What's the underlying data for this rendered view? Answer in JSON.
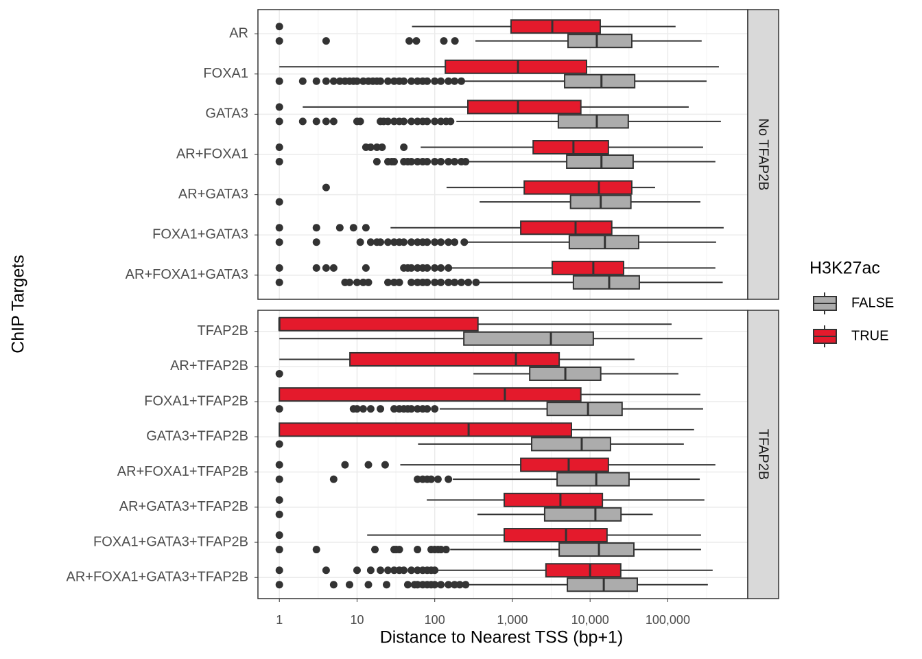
{
  "chart_data": {
    "type": "boxplot",
    "x_label": "Distance to Nearest TSS (bp+1)",
    "y_label": "ChIP Targets",
    "legend_title": "H3K27ac",
    "log_x": true,
    "grid": true,
    "xlim": [
      0.53,
      1070000
    ],
    "xticks": [
      1,
      10,
      100,
      {
        "value": 1000,
        "label": "1,000"
      },
      {
        "value": 10000,
        "label": "10,000"
      },
      {
        "value": 100000,
        "label": "100,000"
      }
    ],
    "facets": [
      {
        "strip": "No TFAP2B",
        "categories": [
          "AR",
          "FOXA1",
          "GATA3",
          "AR+FOXA1",
          "AR+GATA3",
          "FOXA1+GATA3",
          "AR+FOXA1+GATA3"
        ],
        "series": [
          {
            "name": "FALSE",
            "color": "#acacac",
            "boxes": [
              {
                "whislo": 334,
                "q1": 5200,
                "med": 12200,
                "q3": 34400,
                "whishi": 273000,
                "outliers": [
                  1,
                  4,
                  47,
                  58,
                  131,
                  182
                ]
              },
              {
                "whislo": 237,
                "q1": 4700,
                "med": 14000,
                "q3": 37500,
                "whishi": 316000,
                "outliers": [
                  1,
                  2,
                  3,
                  4,
                  5,
                  6,
                  7,
                  8,
                  9,
                  10,
                  12,
                  14,
                  16,
                  18,
                  20,
                  25,
                  30,
                  35,
                  40,
                  50,
                  60,
                  70,
                  80,
                  100,
                  120,
                  150,
                  180,
                  220
                ]
              },
              {
                "whislo": 190,
                "q1": 3900,
                "med": 12200,
                "q3": 31000,
                "whishi": 483000,
                "outliers": [
                  1,
                  2,
                  3,
                  4,
                  5,
                  10,
                  11,
                  20,
                  22,
                  25,
                  30,
                  35,
                  40,
                  50,
                  60,
                  70,
                  80,
                  100,
                  120,
                  140,
                  160
                ]
              },
              {
                "whislo": 257,
                "q1": 5000,
                "med": 14000,
                "q3": 35800,
                "whishi": 410000,
                "outliers": [
                  1,
                  18,
                  25,
                  28,
                  30,
                  40,
                  45,
                  50,
                  60,
                  70,
                  80,
                  100,
                  120,
                  150,
                  180,
                  220,
                  250
                ]
              },
              {
                "whislo": 378,
                "q1": 5600,
                "med": 13700,
                "q3": 33500,
                "whishi": 263000,
                "outliers": [
                  1
                ]
              },
              {
                "whislo": 257,
                "q1": 5400,
                "med": 15500,
                "q3": 42200,
                "whishi": 419000,
                "outliers": [
                  1,
                  3,
                  11,
                  15,
                  18,
                  20,
                  25,
                  30,
                  35,
                  40,
                  50,
                  60,
                  70,
                  80,
                  100,
                  120,
                  150,
                  180,
                  240
                ]
              },
              {
                "whislo": 355,
                "q1": 6100,
                "med": 17600,
                "q3": 43000,
                "whishi": 510000,
                "outliers": [
                  1,
                  7,
                  8,
                  10,
                  12,
                  14,
                  25,
                  30,
                  35,
                  50,
                  60,
                  70,
                  80,
                  100,
                  120,
                  150,
                  180,
                  220,
                  270,
                  340
                ]
              }
            ]
          },
          {
            "name": "TRUE",
            "color": "#e41a2c",
            "boxes": [
              {
                "whislo": 51,
                "q1": 960,
                "med": 3260,
                "q3": 13500,
                "whishi": 126000,
                "outliers": [
                  1
                ]
              },
              {
                "whislo": 1,
                "q1": 137,
                "med": 1180,
                "q3": 9000,
                "whishi": 455000,
                "outliers": []
              },
              {
                "whislo": 2,
                "q1": 267,
                "med": 1180,
                "q3": 7600,
                "whishi": 186000,
                "outliers": [
                  1
                ]
              },
              {
                "whislo": 66,
                "q1": 1850,
                "med": 6100,
                "q3": 17200,
                "whishi": 285000,
                "outliers": [
                  1,
                  13,
                  15,
                  18,
                  21,
                  40
                ]
              },
              {
                "whislo": 142,
                "q1": 1420,
                "med": 13000,
                "q3": 34400,
                "whishi": 68700,
                "outliers": [
                  4
                ]
              },
              {
                "whislo": 27,
                "q1": 1280,
                "med": 6500,
                "q3": 19000,
                "whishi": 524000,
                "outliers": [
                  1,
                  3,
                  6,
                  9,
                  13
                ]
              },
              {
                "whislo": 155,
                "q1": 3260,
                "med": 11000,
                "q3": 27000,
                "whishi": 410000,
                "outliers": [
                  1,
                  3,
                  4,
                  5,
                  13,
                  40,
                  45,
                  50,
                  60,
                  70,
                  80,
                  100,
                  120,
                  150
                ]
              }
            ]
          }
        ]
      },
      {
        "strip": "TFAP2B",
        "categories": [
          "TFAP2B",
          "AR+TFAP2B",
          "FOXA1+TFAP2B",
          "GATA3+TFAP2B",
          "AR+FOXA1+TFAP2B",
          "AR+GATA3+TFAP2B",
          "FOXA1+GATA3+TFAP2B",
          "AR+FOXA1+GATA3+TFAP2B"
        ],
        "series": [
          {
            "name": "FALSE",
            "color": "#acacac",
            "boxes": [
              {
                "whislo": 1,
                "q1": 237,
                "med": 3130,
                "q3": 11000,
                "whishi": 279000,
                "outliers": []
              },
              {
                "whislo": 315,
                "q1": 1670,
                "med": 4800,
                "q3": 13700,
                "whishi": 137000,
                "outliers": [
                  1
                ]
              },
              {
                "whislo": 116,
                "q1": 2800,
                "med": 9400,
                "q3": 25800,
                "whishi": 285000,
                "outliers": [
                  1,
                  9,
                  10,
                  12,
                  15,
                  20,
                  30,
                  35,
                  40,
                  45,
                  50,
                  60,
                  70,
                  80,
                  100
                ]
              },
              {
                "whislo": 61,
                "q1": 1770,
                "med": 7800,
                "q3": 18300,
                "whishi": 161000,
                "outliers": [
                  1
                ]
              },
              {
                "whislo": 171,
                "q1": 3760,
                "med": 12000,
                "q3": 31700,
                "whishi": 258000,
                "outliers": [
                  1,
                  5,
                  60,
                  70,
                  80,
                  90,
                  110,
                  150
                ]
              },
              {
                "whislo": 355,
                "q1": 2600,
                "med": 11700,
                "q3": 25000,
                "whishi": 64000,
                "outliers": [
                  1
                ]
              },
              {
                "whislo": 158,
                "q1": 4000,
                "med": 13000,
                "q3": 36600,
                "whishi": 268000,
                "outliers": [
                  1,
                  3,
                  17,
                  30,
                  32,
                  35,
                  60,
                  90,
                  100,
                  110,
                  120,
                  140
                ]
              },
              {
                "whislo": 257,
                "q1": 5100,
                "med": 15000,
                "q3": 40500,
                "whishi": 328000,
                "outliers": [
                  1,
                  5,
                  8,
                  14,
                  24,
                  45,
                  55,
                  60,
                  70,
                  80,
                  90,
                  100,
                  120,
                  150,
                  180,
                  210,
                  250
                ]
              }
            ]
          },
          {
            "name": "TRUE",
            "color": "#e41a2c",
            "boxes": [
              {
                "whislo": 1,
                "q1": 1,
                "med": 1,
                "q3": 360,
                "whishi": 112000,
                "outliers": []
              },
              {
                "whislo": 1,
                "q1": 8.1,
                "med": 1110,
                "q3": 4000,
                "whishi": 37300,
                "outliers": []
              },
              {
                "whislo": 1,
                "q1": 1,
                "med": 800,
                "q3": 7600,
                "whishi": 263000,
                "outliers": []
              },
              {
                "whislo": 1,
                "q1": 1,
                "med": 273,
                "q3": 5750,
                "whishi": 218000,
                "outliers": []
              },
              {
                "whislo": 36,
                "q1": 1280,
                "med": 5300,
                "q3": 17200,
                "whishi": 410000,
                "outliers": [
                  1,
                  7,
                  14,
                  23
                ]
              },
              {
                "whislo": 79,
                "q1": 785,
                "med": 4150,
                "q3": 14400,
                "whishi": 296000,
                "outliers": [
                  1
                ]
              },
              {
                "whislo": 13.5,
                "q1": 785,
                "med": 4900,
                "q3": 16500,
                "whishi": 268000,
                "outliers": [
                  1
                ]
              },
              {
                "whislo": 100,
                "q1": 2700,
                "med": 10000,
                "q3": 24800,
                "whishi": 378000,
                "outliers": [
                  1,
                  4,
                  10,
                  15,
                  20,
                  25,
                  30,
                  35,
                  40,
                  50,
                  60,
                  70,
                  80,
                  90,
                  100
                ]
              }
            ]
          }
        ]
      }
    ]
  }
}
